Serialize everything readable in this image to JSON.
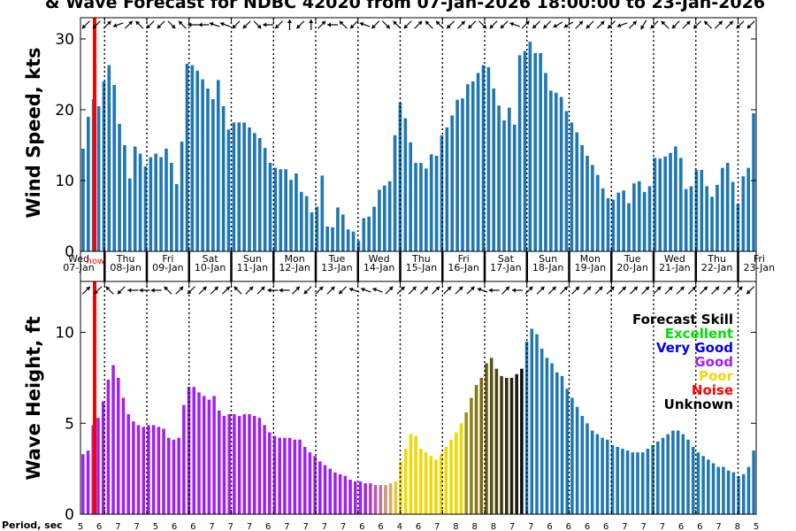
{
  "title": "& Wave Forecast for NDBC 42020 from 07-Jan-2026 18:00:00 to 23-Jan-2026",
  "now_label": "now",
  "period_label": "Period, sec",
  "colors": {
    "bar_default": "#1f77b4",
    "excellent": "#00e000",
    "very_good": "#0000ee",
    "good": "#a020f0",
    "poor": "#f0d800",
    "noise": "#ff0000",
    "unknown": "#000000",
    "now_line": "#ff0000"
  },
  "chart_data": [
    {
      "type": "bar",
      "name": "wind",
      "ylabel": "Wind Speed, kts",
      "ylim": [
        0,
        33
      ],
      "yticks": [
        0,
        10,
        20,
        30
      ],
      "values": [
        14.5,
        19,
        21.5,
        20.5,
        24,
        26.3,
        23.5,
        18,
        15,
        10.3,
        14.8,
        13.8,
        12,
        13.3,
        13.8,
        13.3,
        14.5,
        12.5,
        9.5,
        15.5,
        26.5,
        26.3,
        25.5,
        24.3,
        23,
        21.5,
        24.2,
        20.5,
        17.2,
        18.2,
        18.2,
        18.2,
        17.5,
        16.7,
        16,
        14.6,
        12.5,
        11.8,
        11.6,
        11.6,
        10.1,
        11,
        8.4,
        7.8,
        5.5,
        6.3,
        10.7,
        3.5,
        3.4,
        6.2,
        5.2,
        3.1,
        2.8,
        1.5,
        4.7,
        4.9,
        6.3,
        8.7,
        9.3,
        9.9,
        16.4,
        21,
        18.8,
        15.4,
        12.5,
        12.5,
        11.7,
        13.7,
        13.5,
        16.4,
        17.5,
        19.2,
        21.4,
        21.6,
        23.6,
        24,
        25.2,
        26.3,
        26,
        23,
        20.6,
        18.5,
        20.3,
        17.9,
        27.7,
        28.3,
        29.6,
        28,
        28,
        25.2,
        22.7,
        22.4,
        21.8,
        19.8,
        18.2,
        16.8,
        15,
        13.5,
        12.2,
        10.8,
        8.9,
        7.5,
        7.3,
        8.3,
        8.6,
        6.8,
        9.6,
        9.9,
        8.4,
        9.2,
        13.2,
        13.1,
        13.4,
        13.9,
        14.8,
        13.2,
        8.8,
        9.2,
        11.5,
        11.5,
        9.2,
        7.7,
        9.4,
        11.8,
        12.5,
        9.8,
        6.7,
        10.6,
        11.8,
        19.5
      ],
      "arrows": [
        135,
        135,
        315,
        160,
        315,
        225,
        135,
        135,
        45,
        225,
        180,
        180,
        200,
        200,
        135,
        135,
        45,
        180,
        135,
        270,
        135,
        270,
        315,
        180,
        225,
        135,
        200,
        135,
        45,
        225,
        135,
        315,
        225,
        225,
        135,
        315,
        135,
        45,
        135,
        135,
        200,
        315,
        135,
        135,
        150,
        150,
        315,
        135,
        315,
        135,
        160,
        315,
        120,
        135,
        225,
        135,
        315,
        135,
        225,
        315,
        315,
        135,
        135
      ]
    },
    {
      "type": "bar",
      "name": "wave",
      "ylabel": "Wave Height, ft",
      "ylim": [
        0,
        12.8
      ],
      "yticks": [
        0,
        5,
        10
      ],
      "values": [
        3.3,
        3.5,
        4.9,
        5.3,
        6.2,
        7.4,
        8.2,
        7.5,
        6.4,
        5.5,
        5.1,
        4.9,
        4.8,
        4.9,
        4.9,
        4.8,
        4.7,
        4.2,
        4.1,
        4.2,
        6,
        7,
        7,
        6.7,
        6.5,
        6.3,
        6.5,
        5.7,
        5.4,
        5.5,
        5.5,
        5.4,
        5.5,
        5.5,
        5.4,
        5.3,
        4.9,
        4.5,
        4.3,
        4.2,
        4.2,
        4.2,
        4.1,
        4.1,
        3.7,
        3.4,
        3.2,
        2.9,
        2.7,
        2.5,
        2.3,
        2.2,
        2.1,
        1.9,
        1.8,
        1.8,
        1.7,
        1.7,
        1.6,
        1.6,
        1.6,
        1.7,
        1.8,
        2.9,
        3.6,
        4.4,
        4.3,
        3.6,
        3.4,
        3.2,
        3,
        3.3,
        3.7,
        4.1,
        4.5,
        5,
        5.6,
        6.4,
        7.1,
        7.5,
        8.3,
        8.6,
        8,
        7.6,
        7.5,
        7.5,
        7.7,
        8,
        9.5,
        10.2,
        9.9,
        9.1,
        8.6,
        8.3,
        7.8,
        7.6,
        6.9,
        6.4,
        5.9,
        5.4,
        5,
        4.6,
        4.4,
        4.2,
        4.1,
        3.8,
        3.7,
        3.6,
        3.5,
        3.4,
        3.4,
        3.4,
        3.6,
        3.8,
        4,
        4.2,
        4.4,
        4.6,
        4.6,
        4.4,
        4.1,
        3.7,
        3.4,
        3.2,
        3,
        2.8,
        2.6,
        2.6,
        2.4,
        2.3,
        2.1,
        2.2,
        2.6,
        3.5
      ],
      "arrows": [
        315,
        135,
        225,
        135,
        180,
        180,
        180,
        225,
        315,
        135,
        315,
        315,
        315,
        225,
        315,
        315,
        180,
        180,
        315,
        135,
        315,
        315,
        135,
        200,
        200,
        200,
        315,
        315,
        315,
        315,
        315,
        315,
        315,
        315,
        200,
        180,
        315,
        180,
        315,
        315,
        315,
        315,
        315,
        315,
        315,
        315,
        315,
        315,
        315,
        315,
        315,
        315,
        315,
        315,
        315,
        315,
        315,
        135
      ]
    }
  ],
  "days": [
    {
      "dow": "Wed",
      "date": "07-Jan"
    },
    {
      "dow": "Thu",
      "date": "08-Jan"
    },
    {
      "dow": "Fri",
      "date": "09-Jan"
    },
    {
      "dow": "Sat",
      "date": "10-Jan"
    },
    {
      "dow": "Sun",
      "date": "11-Jan"
    },
    {
      "dow": "Mon",
      "date": "12-Jan"
    },
    {
      "dow": "Tue",
      "date": "13-Jan"
    },
    {
      "dow": "Wed",
      "date": "14-Jan"
    },
    {
      "dow": "Thu",
      "date": "15-Jan"
    },
    {
      "dow": "Fri",
      "date": "16-Jan"
    },
    {
      "dow": "Sat",
      "date": "17-Jan"
    },
    {
      "dow": "Sun",
      "date": "18-Jan"
    },
    {
      "dow": "Mon",
      "date": "19-Jan"
    },
    {
      "dow": "Tue",
      "date": "20-Jan"
    },
    {
      "dow": "Wed",
      "date": "21-Jan"
    },
    {
      "dow": "Thu",
      "date": "22-Jan"
    },
    {
      "dow": "Fri",
      "date": "23-Jan"
    }
  ],
  "periods": [
    "5",
    "6",
    "7",
    "7",
    "5",
    "6",
    "6",
    "7",
    "7",
    "7",
    "6",
    "7",
    "7",
    "7",
    "7",
    "6",
    "6",
    "4",
    "6",
    "7",
    "8",
    "8",
    "8",
    "7",
    "7",
    "6",
    "6",
    "6",
    "6",
    "7",
    "7",
    "7",
    "6",
    "6",
    "7",
    "8",
    "5"
  ],
  "legend": {
    "title": "Forecast Skill",
    "items": [
      {
        "label": "Excellent",
        "key": "excellent"
      },
      {
        "label": "Very Good",
        "key": "very_good"
      },
      {
        "label": "Good",
        "key": "good"
      },
      {
        "label": "Poor",
        "key": "poor"
      },
      {
        "label": "Noise",
        "key": "noise"
      },
      {
        "label": "Unknown",
        "key": "unknown"
      }
    ]
  }
}
